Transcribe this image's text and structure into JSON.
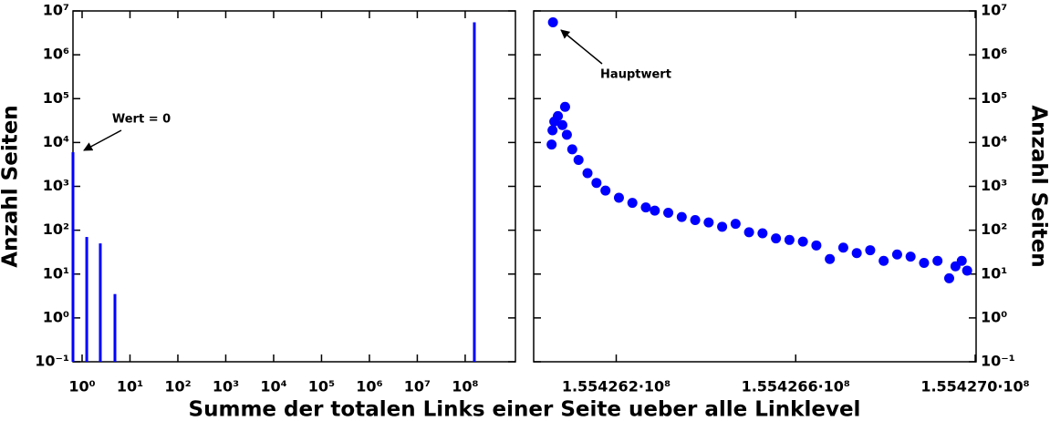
{
  "chart_data": [
    {
      "type": "bar",
      "xscale": "log",
      "yscale": "log",
      "color": "#0000ff",
      "ylabel": "Anzahl Seiten",
      "y_axis_position": "left",
      "xlabel": "Summe der totalen Links einer Seite ueber alle Linklevel",
      "x": [
        0.645,
        1.25,
        2.4,
        4.85,
        155426000
      ],
      "values": [
        6000,
        70,
        50,
        3.5,
        5500000
      ],
      "xlim": [
        0.645,
        1120000000
      ],
      "ylim": [
        0.1,
        10000000
      ],
      "xticks": [
        {
          "value": 1,
          "label": "10⁰"
        },
        {
          "value": 10,
          "label": "10¹"
        },
        {
          "value": 100,
          "label": "10²"
        },
        {
          "value": 1000,
          "label": "10³"
        },
        {
          "value": 10000,
          "label": "10⁴"
        },
        {
          "value": 100000,
          "label": "10⁵"
        },
        {
          "value": 1000000,
          "label": "10⁶"
        },
        {
          "value": 10000000,
          "label": "10⁷"
        },
        {
          "value": 100000000,
          "label": "10⁸"
        }
      ],
      "yticks": [
        {
          "value": 0.1,
          "label": "10⁻¹"
        },
        {
          "value": 1,
          "label": "10⁰"
        },
        {
          "value": 10,
          "label": "10¹"
        },
        {
          "value": 100,
          "label": "10²"
        },
        {
          "value": 1000,
          "label": "10³"
        },
        {
          "value": 10000,
          "label": "10⁴"
        },
        {
          "value": 100000,
          "label": "10⁵"
        },
        {
          "value": 1000000,
          "label": "10⁶"
        },
        {
          "value": 10000000,
          "label": "10⁷"
        }
      ],
      "annotations": [
        "Wert = 0"
      ]
    },
    {
      "type": "scatter",
      "xscale": "linear",
      "yscale": "log",
      "color": "#0000ff",
      "ylabel": "Anzahl Seiten",
      "y_axis_position": "right",
      "x": [
        155426056,
        155426058,
        155426059,
        155426062,
        155426070,
        155426080,
        155426086,
        155426090,
        155426102,
        155426116,
        155426136,
        155426156,
        155426176,
        155426206,
        155426236,
        155426266,
        155426286,
        155426316,
        155426346,
        155426376,
        155426406,
        155426436,
        155426466,
        155426496,
        155426526,
        155426556,
        155426586,
        155426616,
        155426646,
        155426676,
        155426706,
        155426736,
        155426766,
        155426796,
        155426826,
        155426856,
        155426886,
        155426916,
        155426942,
        155426956,
        155426970,
        155426982
      ],
      "values": [
        9000,
        19000,
        5500000,
        30000,
        40000,
        25000,
        65000,
        15000,
        7000,
        4000,
        2000,
        1200,
        800,
        550,
        420,
        330,
        280,
        250,
        200,
        170,
        150,
        120,
        140,
        90,
        85,
        65,
        60,
        55,
        45,
        22,
        40,
        30,
        35,
        20,
        28,
        25,
        18,
        20,
        8,
        15,
        20,
        12
      ],
      "xlim": [
        155426016,
        155427002
      ],
      "ylim": [
        0.1,
        10000000
      ],
      "xticks": [
        {
          "value": 155426200,
          "label": "1.554262·10⁸"
        },
        {
          "value": 155426600,
          "label": "1.554266·10⁸"
        },
        {
          "value": 155427000,
          "label": "1.554270·10⁸"
        }
      ],
      "yticks": [
        {
          "value": 0.1,
          "label": "10⁻¹"
        },
        {
          "value": 1,
          "label": "10⁰"
        },
        {
          "value": 10,
          "label": "10¹"
        },
        {
          "value": 100,
          "label": "10²"
        },
        {
          "value": 1000,
          "label": "10³"
        },
        {
          "value": 10000,
          "label": "10⁴"
        },
        {
          "value": 100000,
          "label": "10⁵"
        },
        {
          "value": 1000000,
          "label": "10⁶"
        },
        {
          "value": 10000000,
          "label": "10⁷"
        }
      ],
      "annotations": [
        "Hauptwert"
      ]
    }
  ]
}
